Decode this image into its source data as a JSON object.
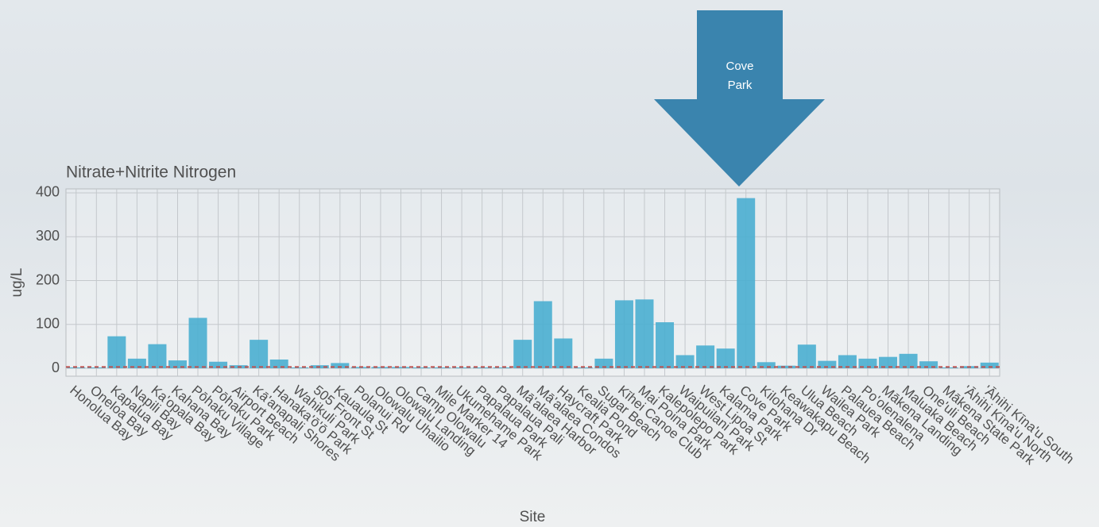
{
  "chart_data": {
    "type": "bar",
    "title": "Nitrate+Nitrite Nitrogen",
    "y_label": "ug/L",
    "x_label": "Site",
    "annotation": "Cove Park",
    "categories": [
      "Honolua Bay",
      "Oneloa Bay",
      "Kapalua Bay",
      "Napili Bay",
      "Ka'opala Bay",
      "Kahana Bay",
      "Pōhaku Village",
      "Pōhaku Park",
      "Airport Beach",
      "Kā'anapali Shores",
      "Hanaka'ō'ō Park",
      "Wahikuli Park",
      "505 Front St",
      "Kauaula St",
      "Polanui Rd",
      "Olowalu Uhailio",
      "Olowalu Landing",
      "Camp Olowalu",
      "Mile Marker 14",
      "Ukumehame Park",
      "Papalaua Park",
      "Papalaua Pali",
      "Mā'alaea Harbor",
      "Mā'alaea Condos",
      "Haycraft Park",
      "Kealia Pond",
      "Sugar Beach",
      "Kīhei Canoe Club",
      "Mai Poina Park",
      "Kalepolepo Park",
      "Waipuilani Park",
      "West Lipoa St",
      "Kalama Park",
      "Cove Park",
      "Kilohana Dr",
      "Keawakapu Beach",
      "Ulua Beach",
      "Wailea Park",
      "Palauea Beach",
      "Po'olenalena",
      "Mākena Landing",
      "Maluaka Beach",
      "One'uli Beach",
      "Mākena State Park",
      "'Āhihi Kīna'u North",
      "'Āhihi Kīna'u South"
    ],
    "values": [
      2,
      2,
      73,
      22,
      55,
      18,
      115,
      15,
      7,
      65,
      20,
      2,
      7,
      12,
      3,
      3,
      3,
      2,
      2,
      2,
      2,
      2,
      65,
      153,
      68,
      2,
      22,
      155,
      157,
      105,
      30,
      52,
      45,
      388,
      14,
      6,
      54,
      17,
      30,
      22,
      26,
      33,
      16,
      2,
      5,
      13
    ],
    "color": "#4aaed0",
    "reference_line": 3,
    "reference_color": "#c0504d",
    "ylim": [
      -18,
      409
    ],
    "yticks": [
      0,
      100,
      200,
      300,
      400
    ],
    "grid": true
  }
}
